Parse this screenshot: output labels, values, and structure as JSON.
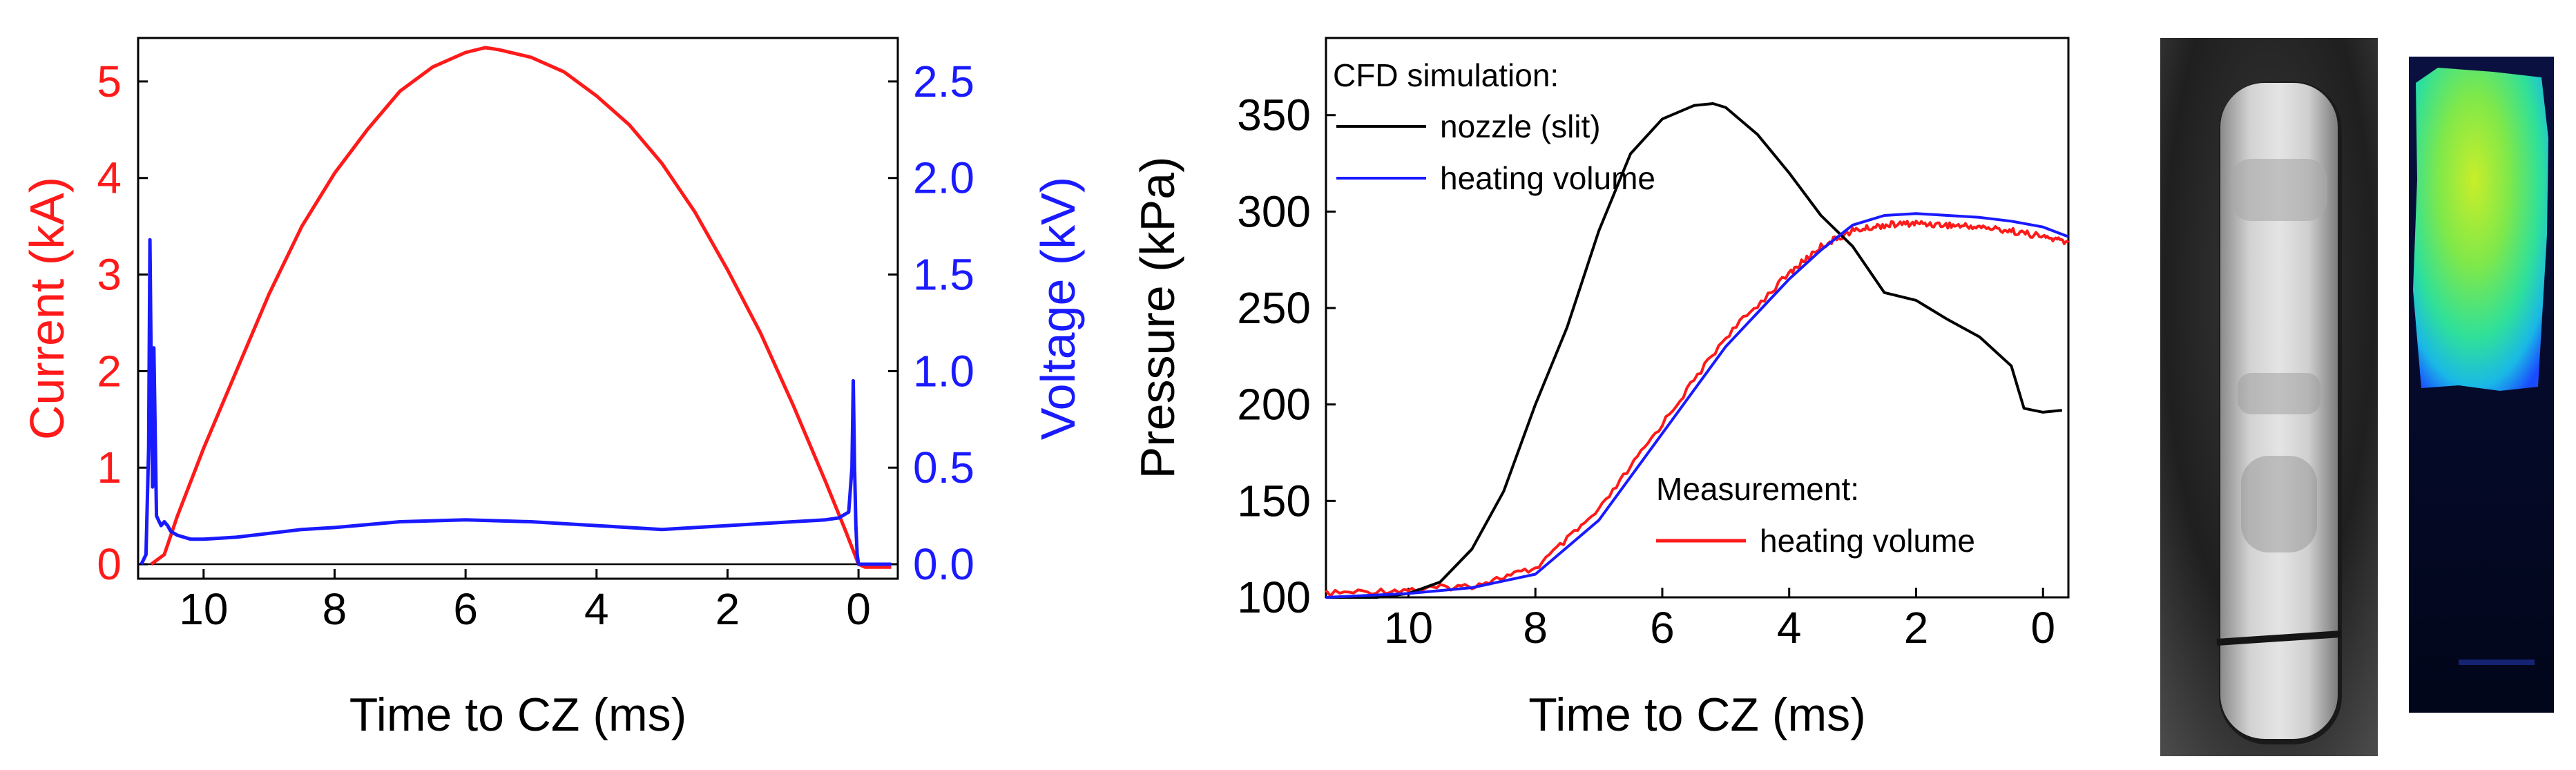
{
  "chart_data": [
    {
      "type": "line",
      "id": "electrical",
      "title": "",
      "xlabel": "Time to CZ (ms)",
      "xlim": [
        11.0,
        -0.6
      ],
      "xticks": [
        10,
        8,
        6,
        4,
        2,
        0
      ],
      "grid": false,
      "left_axis": {
        "label": "Current (kA)",
        "color": "#ff1a1a",
        "ylim": [
          -0.15,
          5.45
        ],
        "ticks": [
          0,
          1,
          2,
          3,
          4,
          5
        ]
      },
      "right_axis": {
        "label": "Voltage (kV)",
        "color": "#1a1aff",
        "ylim": [
          -0.075,
          2.725
        ],
        "ticks": [
          "0.0",
          "0.5",
          "1.0",
          "1.5",
          "2.0",
          "2.5"
        ]
      },
      "series": [
        {
          "name": "Current",
          "axis": "left",
          "color": "#ff1a1a",
          "x": [
            10.8,
            10.6,
            10.4,
            10.0,
            9.5,
            9.0,
            8.5,
            8.0,
            7.5,
            7.0,
            6.5,
            6.0,
            5.7,
            5.5,
            5.0,
            4.5,
            4.0,
            3.5,
            3.0,
            2.5,
            2.0,
            1.5,
            1.0,
            0.5,
            0.2,
            0.0,
            -0.1,
            -0.5
          ],
          "values": [
            0.0,
            0.1,
            0.5,
            1.2,
            2.0,
            2.8,
            3.5,
            4.05,
            4.5,
            4.9,
            5.15,
            5.3,
            5.35,
            5.33,
            5.25,
            5.1,
            4.85,
            4.55,
            4.15,
            3.65,
            3.05,
            2.4,
            1.65,
            0.85,
            0.35,
            0.0,
            -0.03,
            -0.03
          ]
        },
        {
          "name": "Voltage",
          "axis": "right",
          "color": "#1a1aff",
          "x": [
            10.95,
            10.88,
            10.84,
            10.82,
            10.8,
            10.78,
            10.76,
            10.72,
            10.65,
            10.6,
            10.55,
            10.5,
            10.4,
            10.2,
            10.0,
            9.5,
            9.0,
            8.5,
            8.0,
            7.0,
            6.0,
            5.0,
            4.0,
            3.0,
            2.0,
            1.0,
            0.5,
            0.3,
            0.15,
            0.1,
            0.08,
            0.06,
            0.04,
            0.02,
            0.0,
            -0.1,
            -0.5
          ],
          "values": [
            0.0,
            0.05,
            0.6,
            1.68,
            1.0,
            0.4,
            1.12,
            0.25,
            0.2,
            0.22,
            0.2,
            0.17,
            0.15,
            0.13,
            0.13,
            0.14,
            0.16,
            0.18,
            0.19,
            0.22,
            0.23,
            0.22,
            0.2,
            0.18,
            0.2,
            0.22,
            0.23,
            0.24,
            0.27,
            0.5,
            0.95,
            0.5,
            0.2,
            0.05,
            0.0,
            0.0,
            0.0
          ]
        }
      ]
    },
    {
      "type": "line",
      "id": "pressure",
      "title": "",
      "xlabel": "Time to CZ (ms)",
      "ylabel": "Pressure (kPa)",
      "xlim": [
        11.3,
        -0.4
      ],
      "ylim": [
        100,
        390
      ],
      "xticks": [
        10,
        8,
        6,
        4,
        2,
        0
      ],
      "yticks": [
        100,
        150,
        200,
        250,
        300,
        350
      ],
      "grid": false,
      "legend": {
        "sim_heading": "CFD simulation:",
        "meas_heading": "Measurement:",
        "placement": "top-left and bottom-right"
      },
      "series": [
        {
          "name": "nozzle (slit)",
          "group": "CFD simulation",
          "color": "#000000",
          "x": [
            11.3,
            10.5,
            10.0,
            9.5,
            9.0,
            8.5,
            8.0,
            7.5,
            7.0,
            6.5,
            6.0,
            5.5,
            5.2,
            5.0,
            4.5,
            4.0,
            3.5,
            3.0,
            2.5,
            2.0,
            1.5,
            1.0,
            0.5,
            0.3,
            0.0,
            -0.3
          ],
          "values": [
            100,
            100,
            102,
            108,
            125,
            155,
            200,
            240,
            290,
            330,
            348,
            355,
            356,
            354,
            340,
            320,
            298,
            282,
            258,
            254,
            244,
            235,
            220,
            198,
            196,
            197
          ]
        },
        {
          "name": "heating volume",
          "group": "CFD simulation",
          "color": "#1a1aff",
          "x": [
            11.3,
            10.0,
            9.0,
            8.0,
            7.0,
            6.0,
            5.0,
            4.0,
            3.5,
            3.0,
            2.5,
            2.0,
            1.5,
            1.0,
            0.5,
            0.0,
            -0.4
          ],
          "values": [
            100,
            102,
            105,
            112,
            140,
            185,
            230,
            265,
            280,
            293,
            298,
            299,
            298,
            297,
            295,
            292,
            287
          ]
        },
        {
          "name": "heating volume",
          "group": "Measurement",
          "color": "#ff1a1a",
          "x": [
            11.3,
            10.0,
            9.0,
            8.0,
            7.0,
            6.0,
            5.0,
            4.0,
            3.5,
            3.0,
            2.5,
            2.0,
            1.5,
            1.0,
            0.5,
            0.0,
            -0.4
          ],
          "values": [
            102,
            104,
            106,
            115,
            145,
            190,
            235,
            268,
            282,
            290,
            293,
            294,
            293,
            292,
            290,
            287,
            284
          ]
        }
      ]
    }
  ],
  "photos": {
    "grayscale": {
      "name": "grayscale-arc-photo"
    },
    "false_color": {
      "name": "false-color-arc-photo"
    }
  }
}
